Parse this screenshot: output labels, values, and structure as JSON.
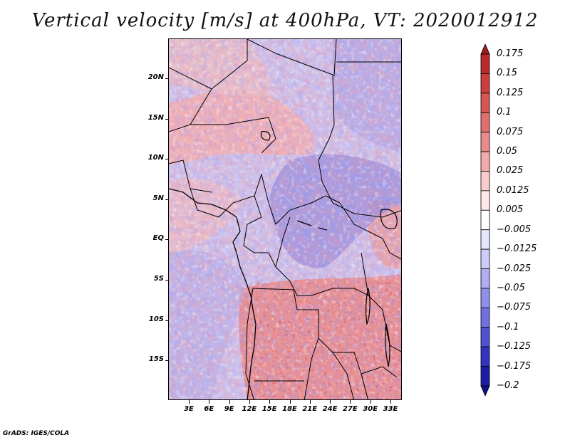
{
  "title": "Vertical velocity [m/s] at 400hPa, VT: 2020012912",
  "y_axis": [
    "20N",
    "15N",
    "10N",
    "5N",
    "EQ",
    "5S",
    "10S",
    "15S"
  ],
  "x_axis": [
    "3E",
    "6E",
    "9E",
    "12E",
    "15E",
    "18E",
    "21E",
    "24E",
    "27E",
    "30E",
    "33E"
  ],
  "colorbar": {
    "labels": [
      "0.175",
      "0.15",
      "0.125",
      "0.1",
      "0.075",
      "0.05",
      "0.025",
      "0.0125",
      "0.005",
      "-0.005",
      "-0.0125",
      "-0.025",
      "-0.05",
      "-0.075",
      "-0.1",
      "-0.125",
      "-0.175",
      "-0.2"
    ],
    "colors": [
      "#a01c1c",
      "#bb2a2a",
      "#cc3e3e",
      "#d95454",
      "#e26e6e",
      "#ea8b8b",
      "#f2aaaa",
      "#f8cccc",
      "#fce8e8",
      "#ffffff",
      "#e6e6fb",
      "#ccccf6",
      "#aeaef0",
      "#9090ea",
      "#7070e0",
      "#5050d2",
      "#3333bf",
      "#1c1ca4",
      "#10108a"
    ]
  },
  "credit": "GrADS: IGES/COLA",
  "colors": {
    "ascent": "#cc3e3e",
    "descent": "#3333bf",
    "background": "#ffffff"
  }
}
